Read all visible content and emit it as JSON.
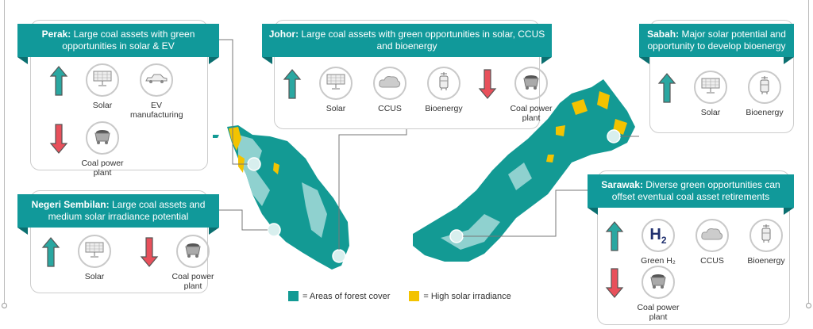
{
  "colors": {
    "header": "#11999a",
    "forest": "#139a94",
    "forest_light": "#8fd1cf",
    "solar": "#f3c300",
    "up_arrow": "#2aa7a1",
    "down_arrow": "#e8505b"
  },
  "regions": [
    {
      "name": "Perak:",
      "title": "Large coal assets with green opportunities in solar & EV",
      "up": [
        {
          "icon": "solar-panel-icon",
          "label": "Solar"
        },
        {
          "icon": "car-icon",
          "label": "EV manufacturing"
        }
      ],
      "down": [
        {
          "icon": "coal-cart-icon",
          "label": "Coal power plant"
        }
      ]
    },
    {
      "name": "Negeri Sembilan:",
      "title": "Large coal assets and medium solar irradiance potential",
      "up": [
        {
          "icon": "solar-panel-icon",
          "label": "Solar"
        }
      ],
      "down": [
        {
          "icon": "coal-cart-icon",
          "label": "Coal power plant"
        }
      ]
    },
    {
      "name": "Johor:",
      "title": "Large coal assets with green opportunities in solar, CCUS and bioenergy",
      "up": [
        {
          "icon": "solar-panel-icon",
          "label": "Solar"
        },
        {
          "icon": "co2-cloud-icon",
          "label": "CCUS"
        },
        {
          "icon": "bioenergy-icon",
          "label": "Bioenergy"
        }
      ],
      "down": [
        {
          "icon": "coal-cart-icon",
          "label": "Coal power plant"
        }
      ]
    },
    {
      "name": "Sabah:",
      "title": "Major solar potential and opportunity to develop bioenergy",
      "up": [
        {
          "icon": "solar-panel-icon",
          "label": "Solar"
        },
        {
          "icon": "bioenergy-icon",
          "label": "Bioenergy"
        }
      ]
    },
    {
      "name": "Sarawak:",
      "title": "Diverse green opportunities can offset eventual coal asset retirements",
      "up": [
        {
          "icon": "h2-icon",
          "label": "Green H₂",
          "glyph": "H₂"
        },
        {
          "icon": "co2-cloud-icon",
          "label": "CCUS"
        },
        {
          "icon": "bioenergy-icon",
          "label": "Bioenergy"
        }
      ],
      "down": [
        {
          "icon": "coal-cart-icon",
          "label": "Coal power plant"
        }
      ]
    }
  ],
  "legend": {
    "forest": "= Areas of forest cover",
    "solar": "= High solar irradiance"
  }
}
